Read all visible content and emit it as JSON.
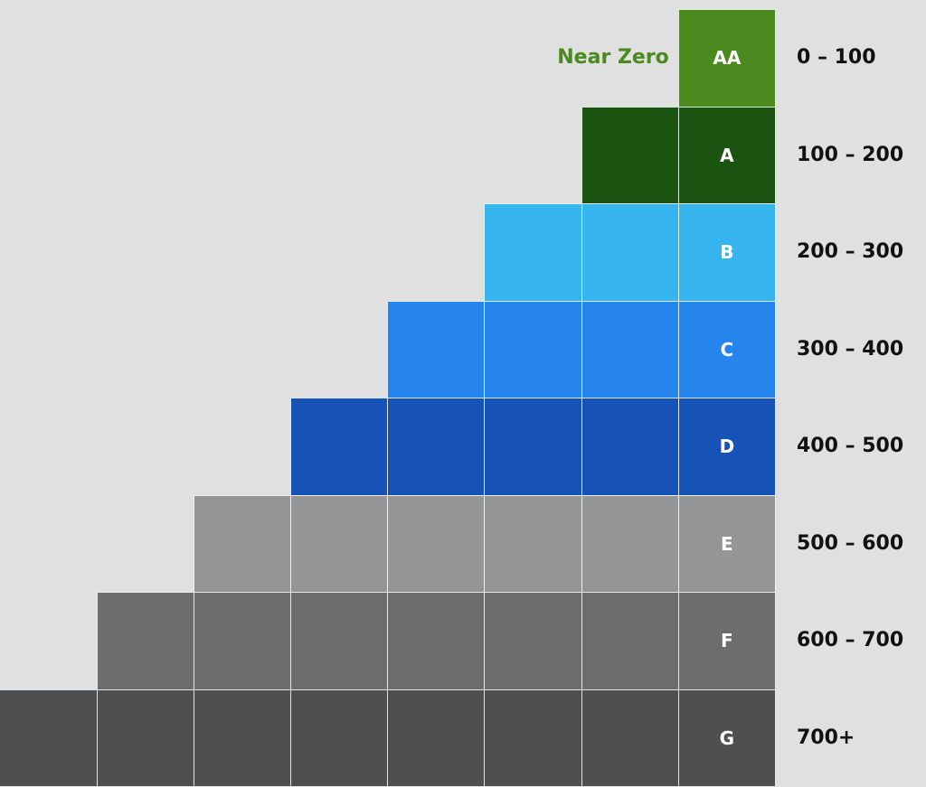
{
  "annotation": {
    "text": "Near Zero",
    "color": "#4a8a1e"
  },
  "rows": [
    {
      "grade": "AA",
      "range": "0 – 100",
      "count": 1,
      "color": "#4a8a1e"
    },
    {
      "grade": "A",
      "range": "100 – 200",
      "count": 2,
      "color": "#1a5410"
    },
    {
      "grade": "B",
      "range": "200 – 300",
      "count": 3,
      "color": "#36b4ee"
    },
    {
      "grade": "C",
      "range": "300 – 400",
      "count": 4,
      "color": "#2685ec"
    },
    {
      "grade": "D",
      "range": "400 – 500",
      "count": 5,
      "color": "#1752b6"
    },
    {
      "grade": "E",
      "range": "500 – 600",
      "count": 6,
      "color": "#949597"
    },
    {
      "grade": "F",
      "range": "600 – 700",
      "count": 7,
      "color": "#6c6d6f"
    },
    {
      "grade": "G",
      "range": "700+",
      "count": 8,
      "color": "#4e4f51"
    }
  ]
}
